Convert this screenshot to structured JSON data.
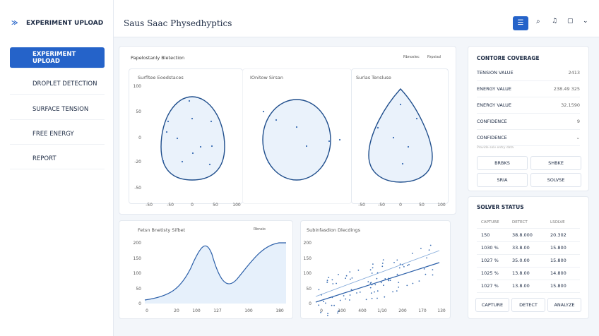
{
  "sidebar": {
    "brand": "EXPERIMENT UPLOAD",
    "nav": [
      "EXPERIMENT UPLOAD",
      "DROPLET DETECTION",
      "SURFACE TENSION",
      "FREE ENERGY",
      "REPORT"
    ]
  },
  "header": {
    "title": "Saus Saac Physedhyptics"
  },
  "detection": {
    "title": "Papelostanly Bletection",
    "controls": [
      "Rbnoslec",
      "Rrpsiad"
    ],
    "plots": [
      {
        "title": "Surfltee Eoedstaces",
        "yticks": [
          "100",
          "50",
          "0",
          "-20",
          "-50"
        ],
        "xticks": [
          "-50",
          "-50",
          "0",
          "50",
          "100"
        ]
      },
      {
        "title": "IOnitow Sirsan",
        "yticks": [],
        "xticks": []
      },
      {
        "title": "Surlas Tensluse",
        "yticks": [],
        "xticks": [
          "-50",
          "-50",
          "0",
          "50",
          "100"
        ]
      }
    ]
  },
  "density": {
    "title": "Fetsn Bnetisty Sifbet",
    "control": "Rbnsio",
    "yticks": [
      "200",
      "150",
      "100",
      "50",
      "0"
    ],
    "xticks": [
      "0",
      "20",
      "100",
      "127",
      "100",
      "180"
    ]
  },
  "scatter": {
    "title": "Subinfasdion Dlecdings",
    "yticks": [
      "200",
      "150",
      "100",
      "50",
      "0"
    ],
    "xticks": [
      "0",
      "100",
      "400",
      "1/10",
      "200",
      "170",
      "130"
    ]
  },
  "coverage": {
    "title": "CONTORE COVERAGE",
    "rows": [
      [
        "TENSION VALUE",
        "2413"
      ],
      [
        "ENERGY VALUE",
        "238.49 325"
      ],
      [
        "ENERGY VALUE",
        "32.1590"
      ],
      [
        "CONFIDENCE",
        "9"
      ],
      [
        "CONFIDENCE",
        "⌄"
      ]
    ],
    "note": "Provide solv entry data",
    "buttons": [
      "BRBKS",
      "SHBKE",
      "SRIA",
      "SOLVSE"
    ]
  },
  "solver": {
    "title": "SOLVER STATUS",
    "table": {
      "header": [
        "CAPTURE",
        "DETECT",
        "LSOLVE"
      ],
      "rows": [
        [
          "150",
          "38.8.000",
          "20.302"
        ],
        [
          "1030 %",
          "33.8.00",
          "15.800"
        ],
        [
          "1027 %",
          "35.0.00",
          "15.800"
        ],
        [
          "1025 %",
          "13.8.00",
          "14.800"
        ],
        [
          "1027 %",
          "13.8.00",
          "15.800"
        ]
      ]
    },
    "buttons": [
      "CAPTURE",
      "DETECT",
      "ANALYZE"
    ]
  }
}
